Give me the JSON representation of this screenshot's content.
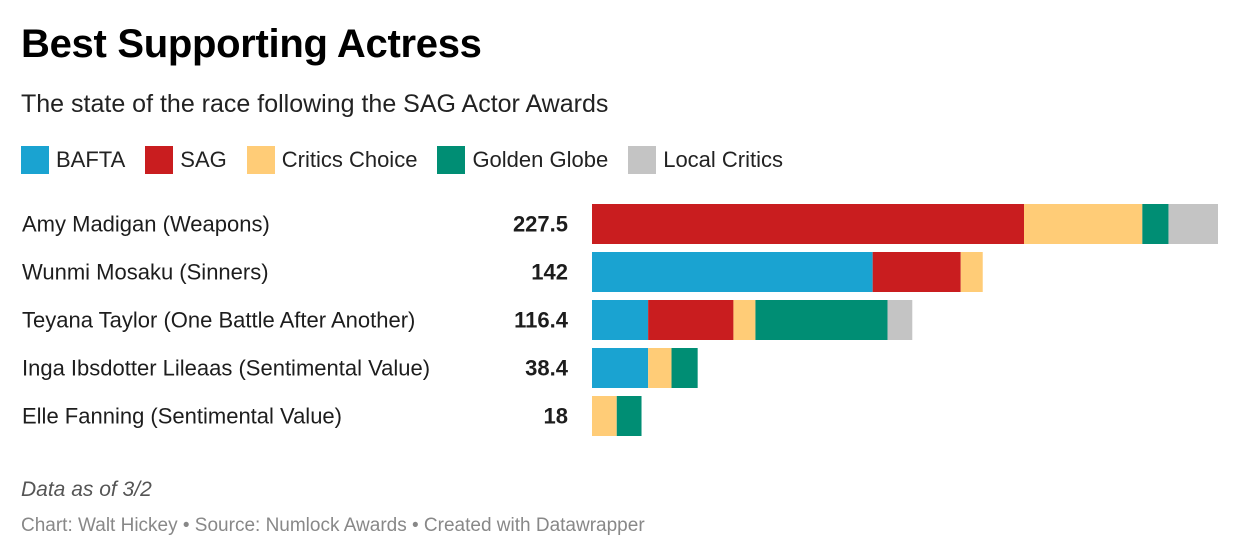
{
  "title": "Best Supporting Actress",
  "subtitle": "The state of the race following the SAG Actor Awards",
  "legend": [
    {
      "label": "BAFTA",
      "color": "#1aa3d1"
    },
    {
      "label": "SAG",
      "color": "#c91d1f"
    },
    {
      "label": "Critics Choice",
      "color": "#ffcc77"
    },
    {
      "label": "Golden Globe",
      "color": "#008e74"
    },
    {
      "label": "Local Critics",
      "color": "#c4c4c4"
    }
  ],
  "chart_data": {
    "type": "bar",
    "orientation": "horizontal",
    "stacked": true,
    "categories": [
      "Amy Madigan (Weapons)",
      "Wunmi Mosaku (Sinners)",
      "Teyana Taylor (One Battle After Another)",
      "Inga Ibsdotter Lileaas (Sentimental Value)",
      "Elle Fanning (Sentimental Value)"
    ],
    "totals": [
      "227.5",
      "142",
      "116.4",
      "38.4",
      "18"
    ],
    "series": [
      {
        "name": "BAFTA",
        "color": "#1aa3d1",
        "values": [
          0,
          102,
          20.4,
          20.4,
          0
        ]
      },
      {
        "name": "SAG",
        "color": "#c91d1f",
        "values": [
          157,
          32,
          31,
          0,
          0
        ]
      },
      {
        "name": "Critics Choice",
        "color": "#ffcc77",
        "values": [
          43,
          8,
          8,
          8.5,
          9
        ]
      },
      {
        "name": "Golden Globe",
        "color": "#008e74",
        "values": [
          9.5,
          0,
          48,
          9.5,
          9
        ]
      },
      {
        "name": "Local Critics",
        "color": "#c4c4c4",
        "values": [
          18,
          0,
          9,
          0,
          0
        ]
      }
    ],
    "xlim": [
      0,
      227.5
    ]
  },
  "note": "Data as of 3/2",
  "credit": "Chart: Walt Hickey • Source: Numlock Awards • Created with Datawrapper"
}
